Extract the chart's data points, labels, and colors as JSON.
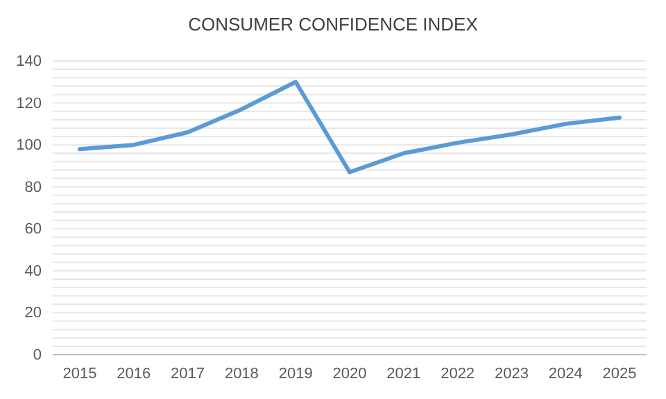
{
  "chart_data": {
    "type": "line",
    "title": "CONSUMER CONFIDENCE INDEX",
    "categories": [
      "2015",
      "2016",
      "2017",
      "2018",
      "2019",
      "2020",
      "2021",
      "2022",
      "2023",
      "2024",
      "2025"
    ],
    "series": [
      {
        "color": "#5b9bd5",
        "values": [
          98,
          100,
          106,
          117,
          130,
          87,
          96,
          101,
          105,
          110,
          113
        ]
      }
    ],
    "ylim": [
      0,
      140
    ],
    "yticks": [
      0,
      {
        "value": 4,
        "label": null
      },
      {
        "value": 8,
        "label": null
      },
      {
        "value": 12,
        "label": null
      },
      {
        "value": 16,
        "label": null
      },
      20,
      {
        "value": 24,
        "label": null
      },
      {
        "value": 28,
        "label": null
      },
      {
        "value": 32,
        "label": null
      },
      {
        "value": 36,
        "label": null
      },
      40,
      {
        "value": 44,
        "label": null
      },
      {
        "value": 48,
        "label": null
      },
      {
        "value": 52,
        "label": null
      },
      {
        "value": 56,
        "label": null
      },
      60,
      {
        "value": 64,
        "label": null
      },
      {
        "value": 68,
        "label": null
      },
      {
        "value": 72,
        "label": null
      },
      {
        "value": 76,
        "label": null
      },
      80,
      {
        "value": 84,
        "label": null
      },
      {
        "value": 88,
        "label": null
      },
      {
        "value": 92,
        "label": null
      },
      {
        "value": 96,
        "label": null
      },
      100,
      {
        "value": 104,
        "label": null
      },
      {
        "value": 108,
        "label": null
      },
      {
        "value": 112,
        "label": null
      },
      {
        "value": 116,
        "label": null
      },
      120,
      {
        "value": 124,
        "label": null
      },
      {
        "value": 128,
        "label": null
      },
      {
        "value": 132,
        "label": null
      },
      {
        "value": 136,
        "label": null
      },
      140
    ],
    "grid": "y",
    "marker": "none",
    "line_style": "solid"
  }
}
